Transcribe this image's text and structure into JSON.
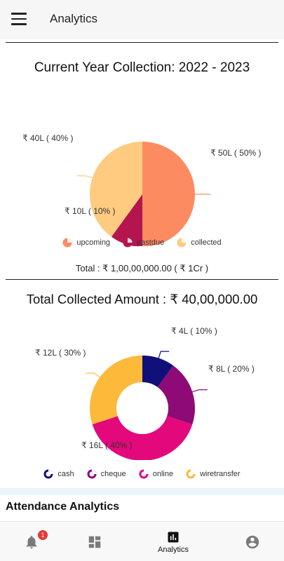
{
  "header": {
    "title": "Analytics"
  },
  "chart1": {
    "title": "Current Year Collection: 2022 - 2023",
    "labels": {
      "upcoming": "₹ 50L ( 50% )",
      "pastdue": "₹ 10L ( 10% )",
      "collected": "₹ 40L ( 40% )"
    },
    "legend": [
      "upcoming",
      "pastdue",
      "collected"
    ],
    "total": "Total : ₹ 1,00,00,000.00 ( ₹ 1Cr )"
  },
  "chart2": {
    "title": "Total Collected Amount : ₹ 40,00,000.00",
    "labels": {
      "cash": "₹ 4L ( 10% )",
      "cheque": "₹ 8L ( 20% )",
      "online": "₹ 16L ( 40% )",
      "wiretransfer": "₹ 12L ( 30% )"
    },
    "legend": [
      "cash",
      "cheque",
      "online",
      "wiretransfer"
    ]
  },
  "attendance": {
    "title": "Attendance Analytics"
  },
  "bottom_nav": {
    "notifications_badge": "1",
    "analytics_label": "Analytics"
  },
  "colors": {
    "upcoming": "#fc8b62",
    "pastdue": "#b5154e",
    "collected": "#ffcb80",
    "cash": "#10107a",
    "cheque": "#8e0a76",
    "online": "#e3087b",
    "wiretransfer": "#fdb93a"
  },
  "chart_data": [
    {
      "type": "pie",
      "title": "Current Year Collection: 2022 - 2023",
      "categories": [
        "upcoming",
        "pastdue",
        "collected"
      ],
      "values": [
        50,
        10,
        40
      ],
      "unit": "L",
      "legend": "bottom"
    },
    {
      "type": "pie",
      "title": "Total Collected Amount : ₹ 40,00,000.00",
      "categories": [
        "cash",
        "cheque",
        "online",
        "wiretransfer"
      ],
      "values": [
        4,
        8,
        16,
        12
      ],
      "unit": "L",
      "donut": true,
      "legend": "bottom"
    }
  ]
}
